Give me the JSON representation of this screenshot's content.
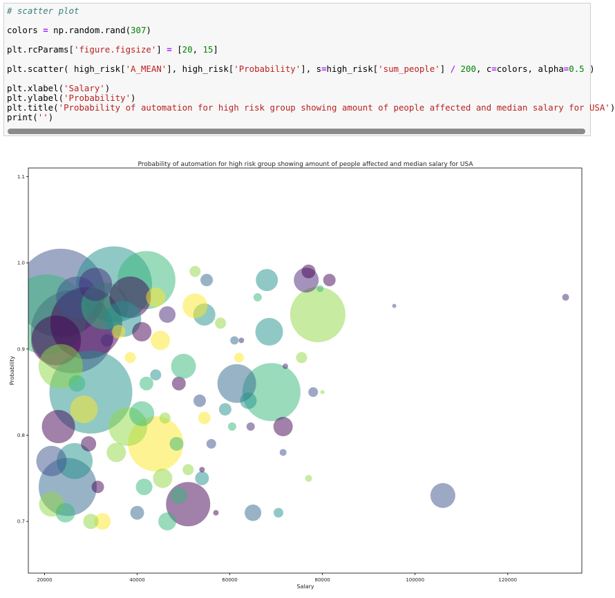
{
  "notebook": {
    "code_lines": [
      "# scatter plot",
      "",
      "colors = np.random.rand(307)",
      "",
      "plt.rcParams['figure.figsize'] = [20, 15]",
      "",
      "plt.scatter( high_risk['A_MEAN'], high_risk['Probability'], s=high_risk['sum_people'] / 200, c=colors, alpha=0.5 )",
      "",
      "plt.xlabel('Salary')",
      "plt.ylabel('Probability')",
      "plt.title('Probability of automation for high risk group showing amount of people affected and median salary for USA')",
      "print('')"
    ]
  },
  "chart_data": {
    "type": "scatter",
    "title": "Probability of automation for high risk group showing amount of people affected and median salary for USA",
    "xlabel": "Salary",
    "ylabel": "Probability",
    "xlim": [
      16500,
      136000
    ],
    "ylim": [
      0.64,
      1.11
    ],
    "x_ticks": [
      20000,
      40000,
      60000,
      80000,
      100000,
      120000
    ],
    "y_ticks": [
      0.7,
      0.8,
      0.9,
      1.0,
      1.1
    ],
    "x_tick_labels": [
      "20000",
      "40000",
      "60000",
      "80000",
      "100000",
      "120000"
    ],
    "y_tick_labels": [
      "0.7",
      "0.8",
      "0.9",
      "1.0",
      "1.1"
    ],
    "alpha": 0.5,
    "colors": {
      "purple": "#482878",
      "violet": "#440154",
      "blue": "#3b528b",
      "steel": "#31688e",
      "teal": "#21918c",
      "green": "#35b779",
      "lime": "#90d743",
      "yellow": "#fde725"
    },
    "points": [
      {
        "x": 23500,
        "y": 0.965,
        "r": 64,
        "c": "blue"
      },
      {
        "x": 26000,
        "y": 0.92,
        "r": 60,
        "c": "purple"
      },
      {
        "x": 35000,
        "y": 0.975,
        "r": 55,
        "c": "teal"
      },
      {
        "x": 42000,
        "y": 0.98,
        "r": 42,
        "c": "green"
      },
      {
        "x": 20500,
        "y": 0.94,
        "r": 58,
        "c": "green"
      },
      {
        "x": 29000,
        "y": 0.93,
        "r": 52,
        "c": "violet"
      },
      {
        "x": 30000,
        "y": 0.85,
        "r": 60,
        "c": "teal"
      },
      {
        "x": 25000,
        "y": 0.74,
        "r": 42,
        "c": "steel"
      },
      {
        "x": 44000,
        "y": 0.79,
        "r": 40,
        "c": "yellow"
      },
      {
        "x": 79000,
        "y": 0.94,
        "r": 40,
        "c": "lime"
      },
      {
        "x": 69000,
        "y": 0.85,
        "r": 42,
        "c": "green"
      },
      {
        "x": 61500,
        "y": 0.86,
        "r": 28,
        "c": "steel"
      },
      {
        "x": 51000,
        "y": 0.72,
        "r": 32,
        "c": "violet"
      },
      {
        "x": 38000,
        "y": 0.81,
        "r": 28,
        "c": "lime"
      },
      {
        "x": 22500,
        "y": 0.91,
        "r": 36,
        "c": "violet"
      },
      {
        "x": 27000,
        "y": 0.96,
        "r": 30,
        "c": "blue"
      },
      {
        "x": 33000,
        "y": 0.95,
        "r": 34,
        "c": "green"
      },
      {
        "x": 38500,
        "y": 0.96,
        "r": 30,
        "c": "violet"
      },
      {
        "x": 37000,
        "y": 0.935,
        "r": 26,
        "c": "teal"
      },
      {
        "x": 31000,
        "y": 0.975,
        "r": 24,
        "c": "purple"
      },
      {
        "x": 26500,
        "y": 0.77,
        "r": 26,
        "c": "teal"
      },
      {
        "x": 23000,
        "y": 0.81,
        "r": 24,
        "c": "violet"
      },
      {
        "x": 28500,
        "y": 0.83,
        "r": 20,
        "c": "yellow"
      },
      {
        "x": 23500,
        "y": 0.88,
        "r": 32,
        "c": "lime"
      },
      {
        "x": 21500,
        "y": 0.77,
        "r": 22,
        "c": "blue"
      },
      {
        "x": 21500,
        "y": 0.72,
        "r": 18,
        "c": "lime"
      },
      {
        "x": 41000,
        "y": 0.825,
        "r": 18,
        "c": "green"
      },
      {
        "x": 68500,
        "y": 0.92,
        "r": 20,
        "c": "teal"
      },
      {
        "x": 106000,
        "y": 0.73,
        "r": 18,
        "c": "blue"
      },
      {
        "x": 76500,
        "y": 0.98,
        "r": 18,
        "c": "purple"
      },
      {
        "x": 68000,
        "y": 0.98,
        "r": 16,
        "c": "teal"
      },
      {
        "x": 71500,
        "y": 0.81,
        "r": 14,
        "c": "violet"
      },
      {
        "x": 64000,
        "y": 0.84,
        "r": 12,
        "c": "teal"
      },
      {
        "x": 54500,
        "y": 0.94,
        "r": 16,
        "c": "teal"
      },
      {
        "x": 52500,
        "y": 0.95,
        "r": 18,
        "c": "yellow"
      },
      {
        "x": 49000,
        "y": 0.86,
        "r": 10,
        "c": "violet"
      },
      {
        "x": 50000,
        "y": 0.88,
        "r": 18,
        "c": "green"
      },
      {
        "x": 44000,
        "y": 0.96,
        "r": 14,
        "c": "yellow"
      },
      {
        "x": 46500,
        "y": 0.94,
        "r": 12,
        "c": "purple"
      },
      {
        "x": 45000,
        "y": 0.91,
        "r": 14,
        "c": "yellow"
      },
      {
        "x": 41000,
        "y": 0.92,
        "r": 14,
        "c": "violet"
      },
      {
        "x": 45500,
        "y": 0.75,
        "r": 14,
        "c": "lime"
      },
      {
        "x": 48500,
        "y": 0.79,
        "r": 10,
        "c": "green"
      },
      {
        "x": 41500,
        "y": 0.74,
        "r": 12,
        "c": "green"
      },
      {
        "x": 65000,
        "y": 0.71,
        "r": 12,
        "c": "steel"
      },
      {
        "x": 46500,
        "y": 0.7,
        "r": 13,
        "c": "green"
      },
      {
        "x": 40000,
        "y": 0.71,
        "r": 10,
        "c": "steel"
      },
      {
        "x": 32500,
        "y": 0.7,
        "r": 12,
        "c": "yellow"
      },
      {
        "x": 30000,
        "y": 0.7,
        "r": 11,
        "c": "lime"
      },
      {
        "x": 24500,
        "y": 0.71,
        "r": 14,
        "c": "green"
      },
      {
        "x": 29500,
        "y": 0.79,
        "r": 11,
        "c": "violet"
      },
      {
        "x": 31500,
        "y": 0.74,
        "r": 9,
        "c": "violet"
      },
      {
        "x": 35500,
        "y": 0.78,
        "r": 14,
        "c": "lime"
      },
      {
        "x": 54000,
        "y": 0.75,
        "r": 10,
        "c": "teal"
      },
      {
        "x": 58000,
        "y": 0.93,
        "r": 8,
        "c": "lime"
      },
      {
        "x": 55000,
        "y": 0.98,
        "r": 9,
        "c": "steel"
      },
      {
        "x": 52500,
        "y": 0.99,
        "r": 8,
        "c": "lime"
      },
      {
        "x": 81500,
        "y": 0.98,
        "r": 9,
        "c": "violet"
      },
      {
        "x": 77000,
        "y": 0.99,
        "r": 10,
        "c": "violet"
      },
      {
        "x": 78000,
        "y": 0.85,
        "r": 7,
        "c": "blue"
      },
      {
        "x": 75500,
        "y": 0.89,
        "r": 8,
        "c": "lime"
      },
      {
        "x": 53500,
        "y": 0.84,
        "r": 9,
        "c": "blue"
      },
      {
        "x": 59000,
        "y": 0.83,
        "r": 9,
        "c": "teal"
      },
      {
        "x": 54500,
        "y": 0.82,
        "r": 9,
        "c": "yellow"
      },
      {
        "x": 49000,
        "y": 0.73,
        "r": 12,
        "c": "green"
      },
      {
        "x": 51000,
        "y": 0.76,
        "r": 8,
        "c": "lime"
      },
      {
        "x": 44000,
        "y": 0.87,
        "r": 8,
        "c": "teal"
      },
      {
        "x": 38500,
        "y": 0.89,
        "r": 8,
        "c": "yellow"
      },
      {
        "x": 42000,
        "y": 0.86,
        "r": 10,
        "c": "green"
      },
      {
        "x": 27000,
        "y": 0.86,
        "r": 12,
        "c": "green"
      },
      {
        "x": 33500,
        "y": 0.91,
        "r": 9,
        "c": "purple"
      },
      {
        "x": 36000,
        "y": 0.92,
        "r": 10,
        "c": "yellow"
      },
      {
        "x": 46000,
        "y": 0.82,
        "r": 8,
        "c": "lime"
      },
      {
        "x": 56000,
        "y": 0.79,
        "r": 7,
        "c": "blue"
      },
      {
        "x": 60500,
        "y": 0.81,
        "r": 6,
        "c": "green"
      },
      {
        "x": 64500,
        "y": 0.81,
        "r": 6,
        "c": "purple"
      },
      {
        "x": 62000,
        "y": 0.89,
        "r": 7,
        "c": "yellow"
      },
      {
        "x": 61000,
        "y": 0.91,
        "r": 6,
        "c": "steel"
      },
      {
        "x": 71500,
        "y": 0.78,
        "r": 5,
        "c": "blue"
      },
      {
        "x": 77000,
        "y": 0.75,
        "r": 5,
        "c": "lime"
      },
      {
        "x": 66000,
        "y": 0.96,
        "r": 6,
        "c": "green"
      },
      {
        "x": 95500,
        "y": 0.95,
        "r": 3,
        "c": "blue"
      },
      {
        "x": 132500,
        "y": 0.96,
        "r": 5,
        "c": "purple"
      },
      {
        "x": 79500,
        "y": 0.97,
        "r": 5,
        "c": "green"
      },
      {
        "x": 62500,
        "y": 0.91,
        "r": 4,
        "c": "purple"
      },
      {
        "x": 72000,
        "y": 0.88,
        "r": 4,
        "c": "purple"
      },
      {
        "x": 80000,
        "y": 0.85,
        "r": 3,
        "c": "lime"
      },
      {
        "x": 57000,
        "y": 0.71,
        "r": 4,
        "c": "violet"
      },
      {
        "x": 54000,
        "y": 0.76,
        "r": 4,
        "c": "violet"
      },
      {
        "x": 70500,
        "y": 0.71,
        "r": 7,
        "c": "teal"
      }
    ]
  }
}
